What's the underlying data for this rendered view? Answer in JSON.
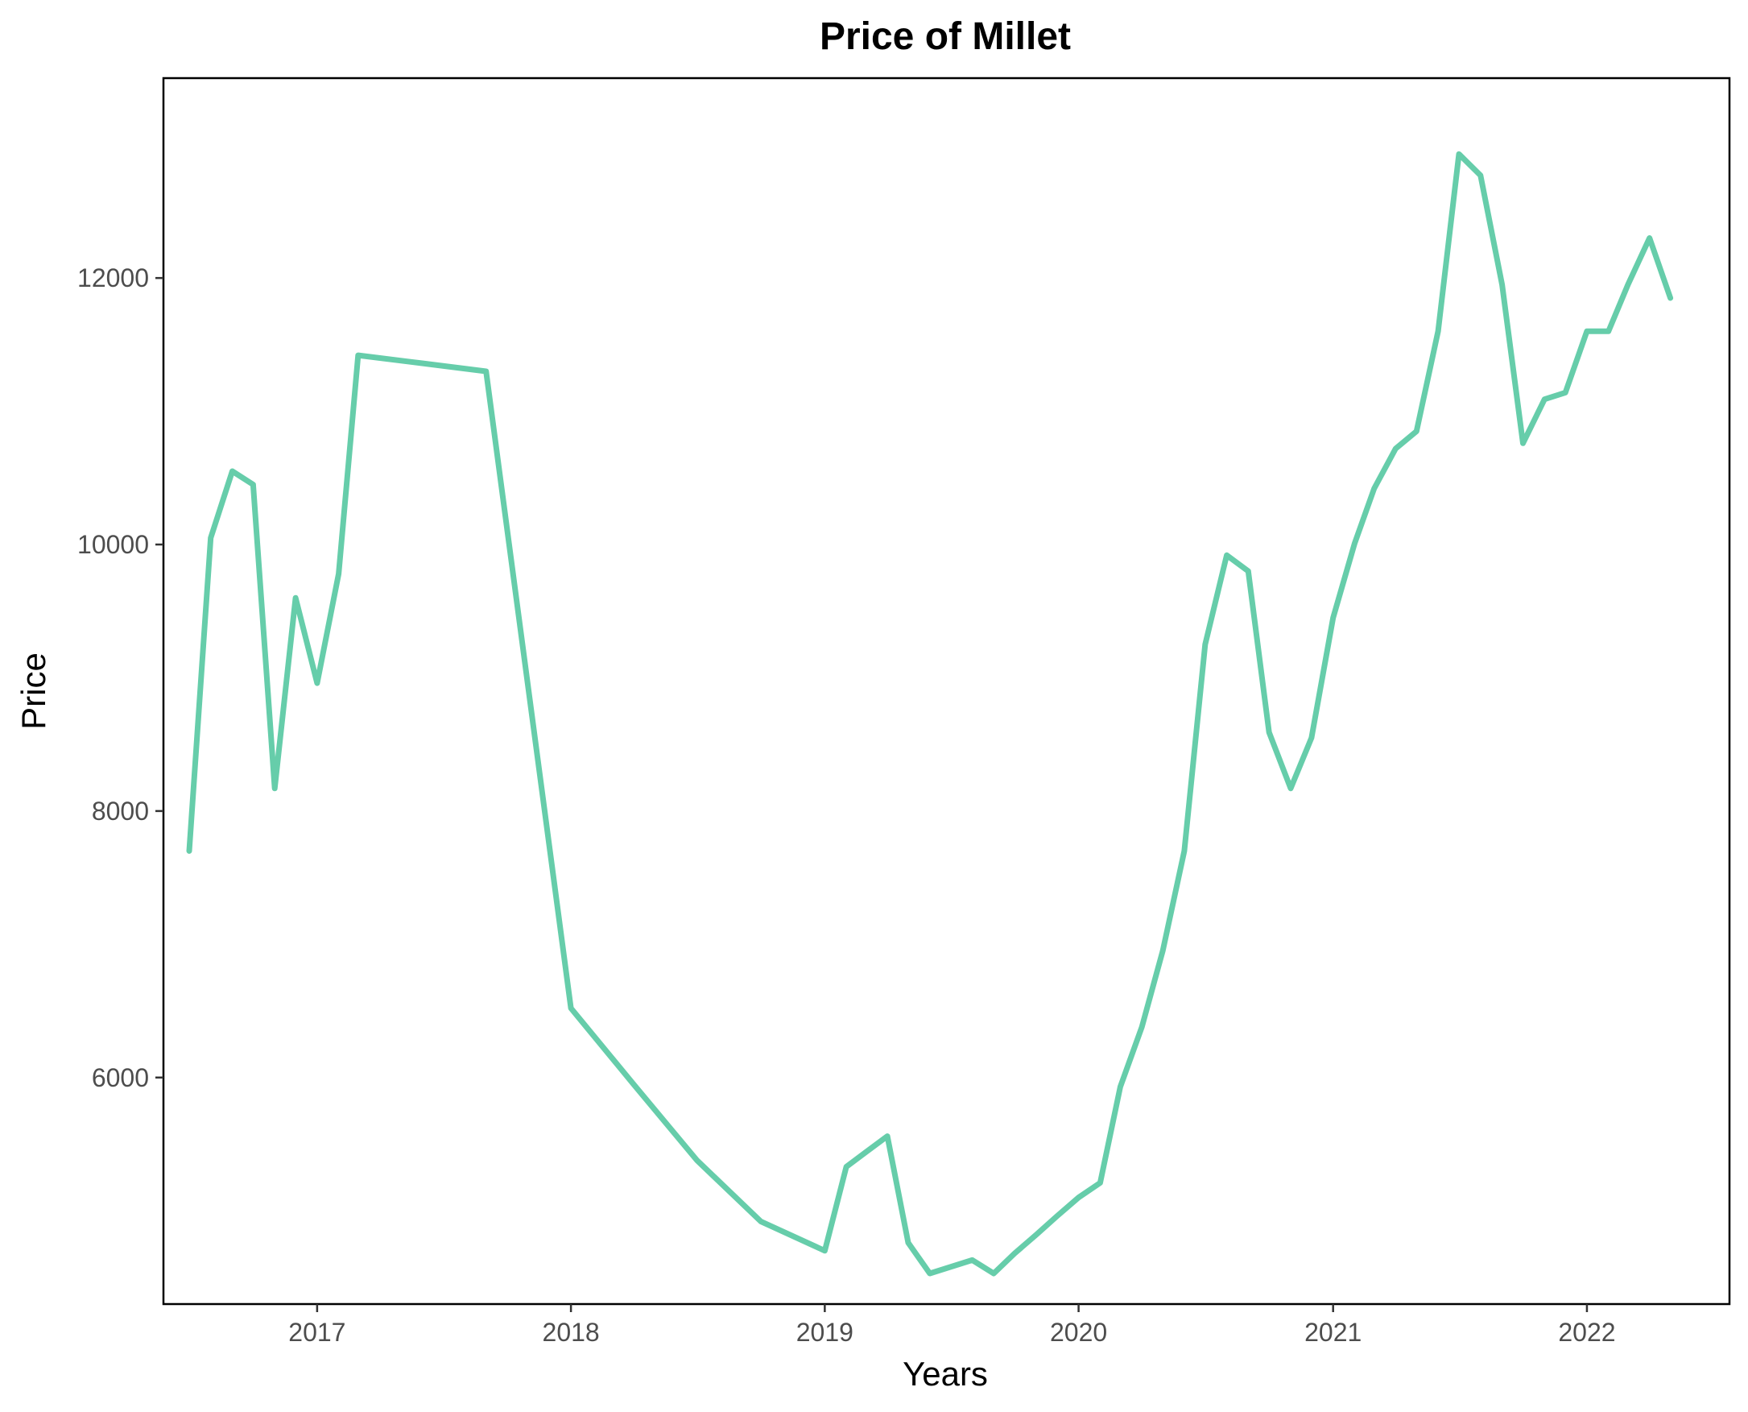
{
  "chart_data": {
    "type": "line",
    "title": "Price of Millet",
    "xlabel": "Years",
    "ylabel": "Price",
    "x_ticks": [
      "2017",
      "2018",
      "2019",
      "2020",
      "2021",
      "2022"
    ],
    "y_ticks": [
      "6000",
      "8000",
      "10000",
      "12000"
    ],
    "xlim": [
      "2016-05-25",
      "2022-07-25"
    ],
    "ylim": [
      4300,
      13500
    ],
    "grid": false,
    "legend": "none",
    "line_color": "#66CDAA",
    "series": [
      {
        "x": [
          "2016-07-01",
          "2016-08-01",
          "2016-09-01",
          "2016-10-01",
          "2016-11-01",
          "2016-12-01",
          "2017-01-01",
          "2017-02-01",
          "2017-03-01",
          "2017-06-01",
          "2017-09-01",
          "2018-01-01",
          "2018-04-01",
          "2018-07-01",
          "2018-10-01",
          "2019-01-01",
          "2019-02-01",
          "2019-03-01",
          "2019-04-01",
          "2019-05-01",
          "2019-06-01",
          "2019-08-01",
          "2019-09-01",
          "2019-10-01",
          "2019-11-01",
          "2019-12-01",
          "2020-01-01",
          "2020-02-01",
          "2020-03-01",
          "2020-04-01",
          "2020-05-01",
          "2020-06-01",
          "2020-07-01",
          "2020-08-01",
          "2020-09-01",
          "2020-10-01",
          "2020-11-01",
          "2020-12-01",
          "2021-01-01",
          "2021-02-01",
          "2021-03-01",
          "2021-04-01",
          "2021-05-01",
          "2021-06-01",
          "2021-07-01",
          "2021-08-01",
          "2021-09-01",
          "2021-10-01",
          "2021-11-01",
          "2021-12-01",
          "2022-01-01",
          "2022-02-01",
          "2022-03-01",
          "2022-04-01",
          "2022-05-01"
        ],
        "y": [
          7700,
          10050,
          10550,
          10450,
          8170,
          9600,
          8960,
          9780,
          11420,
          11360,
          11300,
          6520,
          5950,
          5380,
          4920,
          4700,
          5330,
          5440,
          5560,
          4760,
          4530,
          4630,
          4530,
          4680,
          4820,
          4960,
          5100,
          5210,
          5930,
          6380,
          6950,
          7700,
          9250,
          9920,
          9800,
          8590,
          8170,
          8550,
          9450,
          10010,
          10420,
          10720,
          10850,
          11600,
          12930,
          12770,
          11950,
          10760,
          11090,
          11140,
          11600,
          11600,
          11950,
          12300,
          11850
        ]
      }
    ]
  }
}
